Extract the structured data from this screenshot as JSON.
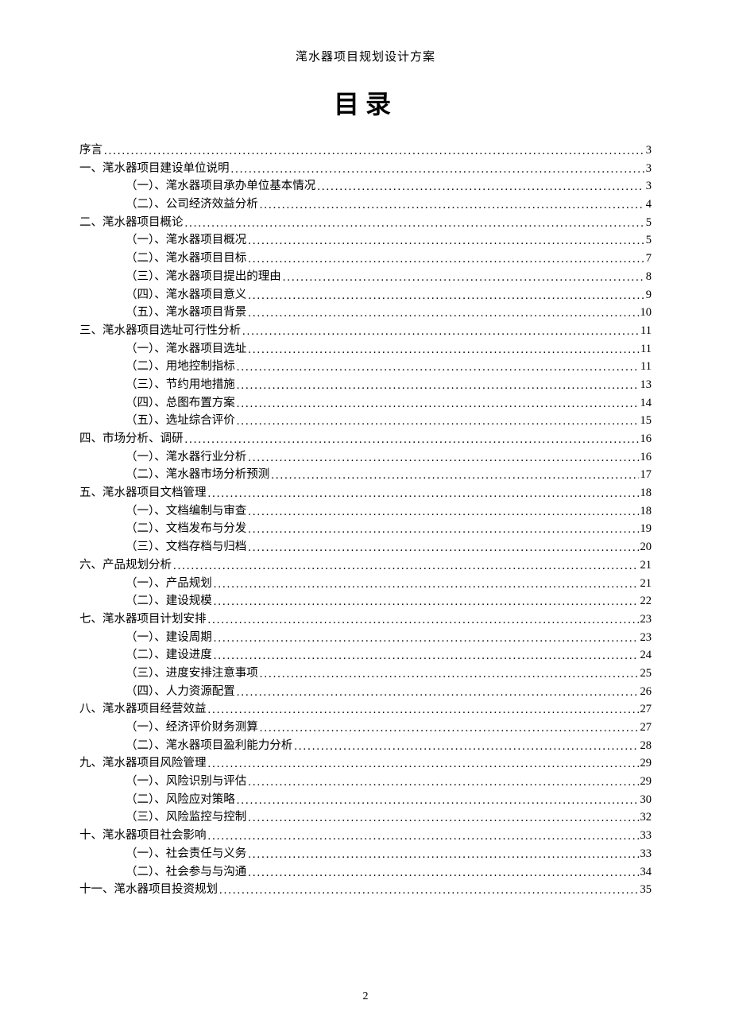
{
  "header": "滗水器项目规划设计方案",
  "title": "目录",
  "pageNumber": "2",
  "entries": [
    {
      "level": 0,
      "label": "序言",
      "page": "3"
    },
    {
      "level": 0,
      "label": "一、滗水器项目建设单位说明",
      "page": "3"
    },
    {
      "level": 1,
      "label": "（一）、滗水器项目承办单位基本情况",
      "page": "3"
    },
    {
      "level": 1,
      "label": "（二）、公司经济效益分析",
      "page": "4"
    },
    {
      "level": 0,
      "label": "二、滗水器项目概论",
      "page": "5"
    },
    {
      "level": 1,
      "label": "（一）、滗水器项目概况",
      "page": "5"
    },
    {
      "level": 1,
      "label": "（二）、滗水器项目目标",
      "page": "7"
    },
    {
      "level": 1,
      "label": "（三）、滗水器项目提出的理由",
      "page": "8"
    },
    {
      "level": 1,
      "label": "（四）、滗水器项目意义",
      "page": "9"
    },
    {
      "level": 1,
      "label": "（五）、滗水器项目背景",
      "page": "10"
    },
    {
      "level": 0,
      "label": "三、滗水器项目选址可行性分析",
      "page": "11"
    },
    {
      "level": 1,
      "label": "（一）、滗水器项目选址",
      "page": "11"
    },
    {
      "level": 1,
      "label": "（二）、用地控制指标",
      "page": "11"
    },
    {
      "level": 1,
      "label": "（三）、节约用地措施",
      "page": "13"
    },
    {
      "level": 1,
      "label": "（四）、总图布置方案",
      "page": "14"
    },
    {
      "level": 1,
      "label": "（五）、选址综合评价",
      "page": "15"
    },
    {
      "level": 0,
      "label": "四、市场分析、调研",
      "page": "16"
    },
    {
      "level": 1,
      "label": "（一）、滗水器行业分析",
      "page": "16"
    },
    {
      "level": 1,
      "label": "（二）、滗水器市场分析预测",
      "page": "17"
    },
    {
      "level": 0,
      "label": "五、滗水器项目文档管理",
      "page": "18"
    },
    {
      "level": 1,
      "label": "（一）、文档编制与审查",
      "page": "18"
    },
    {
      "level": 1,
      "label": "（二）、文档发布与分发",
      "page": "19"
    },
    {
      "level": 1,
      "label": "（三）、文档存档与归档",
      "page": "20"
    },
    {
      "level": 0,
      "label": "六、产品规划分析",
      "page": "21"
    },
    {
      "level": 1,
      "label": "（一）、产品规划",
      "page": "21"
    },
    {
      "level": 1,
      "label": "（二）、建设规模",
      "page": "22"
    },
    {
      "level": 0,
      "label": "七、滗水器项目计划安排",
      "page": "23"
    },
    {
      "level": 1,
      "label": "（一）、建设周期",
      "page": "23"
    },
    {
      "level": 1,
      "label": "（二）、建设进度",
      "page": "24"
    },
    {
      "level": 1,
      "label": "（三）、进度安排注意事项",
      "page": "25"
    },
    {
      "level": 1,
      "label": "（四）、人力资源配置",
      "page": "26"
    },
    {
      "level": 0,
      "label": "八、滗水器项目经营效益",
      "page": "27"
    },
    {
      "level": 1,
      "label": "（一）、经济评价财务测算",
      "page": "27"
    },
    {
      "level": 1,
      "label": "（二）、滗水器项目盈利能力分析",
      "page": "28"
    },
    {
      "level": 0,
      "label": "九、滗水器项目风险管理",
      "page": "29"
    },
    {
      "level": 1,
      "label": "（一）、风险识别与评估",
      "page": "29"
    },
    {
      "level": 1,
      "label": "（二）、风险应对策略",
      "page": "30"
    },
    {
      "level": 1,
      "label": "（三）、风险监控与控制",
      "page": "32"
    },
    {
      "level": 0,
      "label": "十、滗水器项目社会影响",
      "page": "33"
    },
    {
      "level": 1,
      "label": "（一）、社会责任与义务",
      "page": "33"
    },
    {
      "level": 1,
      "label": "（二）、社会参与与沟通",
      "page": "34"
    },
    {
      "level": 0,
      "label": "十一、滗水器项目投资规划",
      "page": "35"
    }
  ]
}
